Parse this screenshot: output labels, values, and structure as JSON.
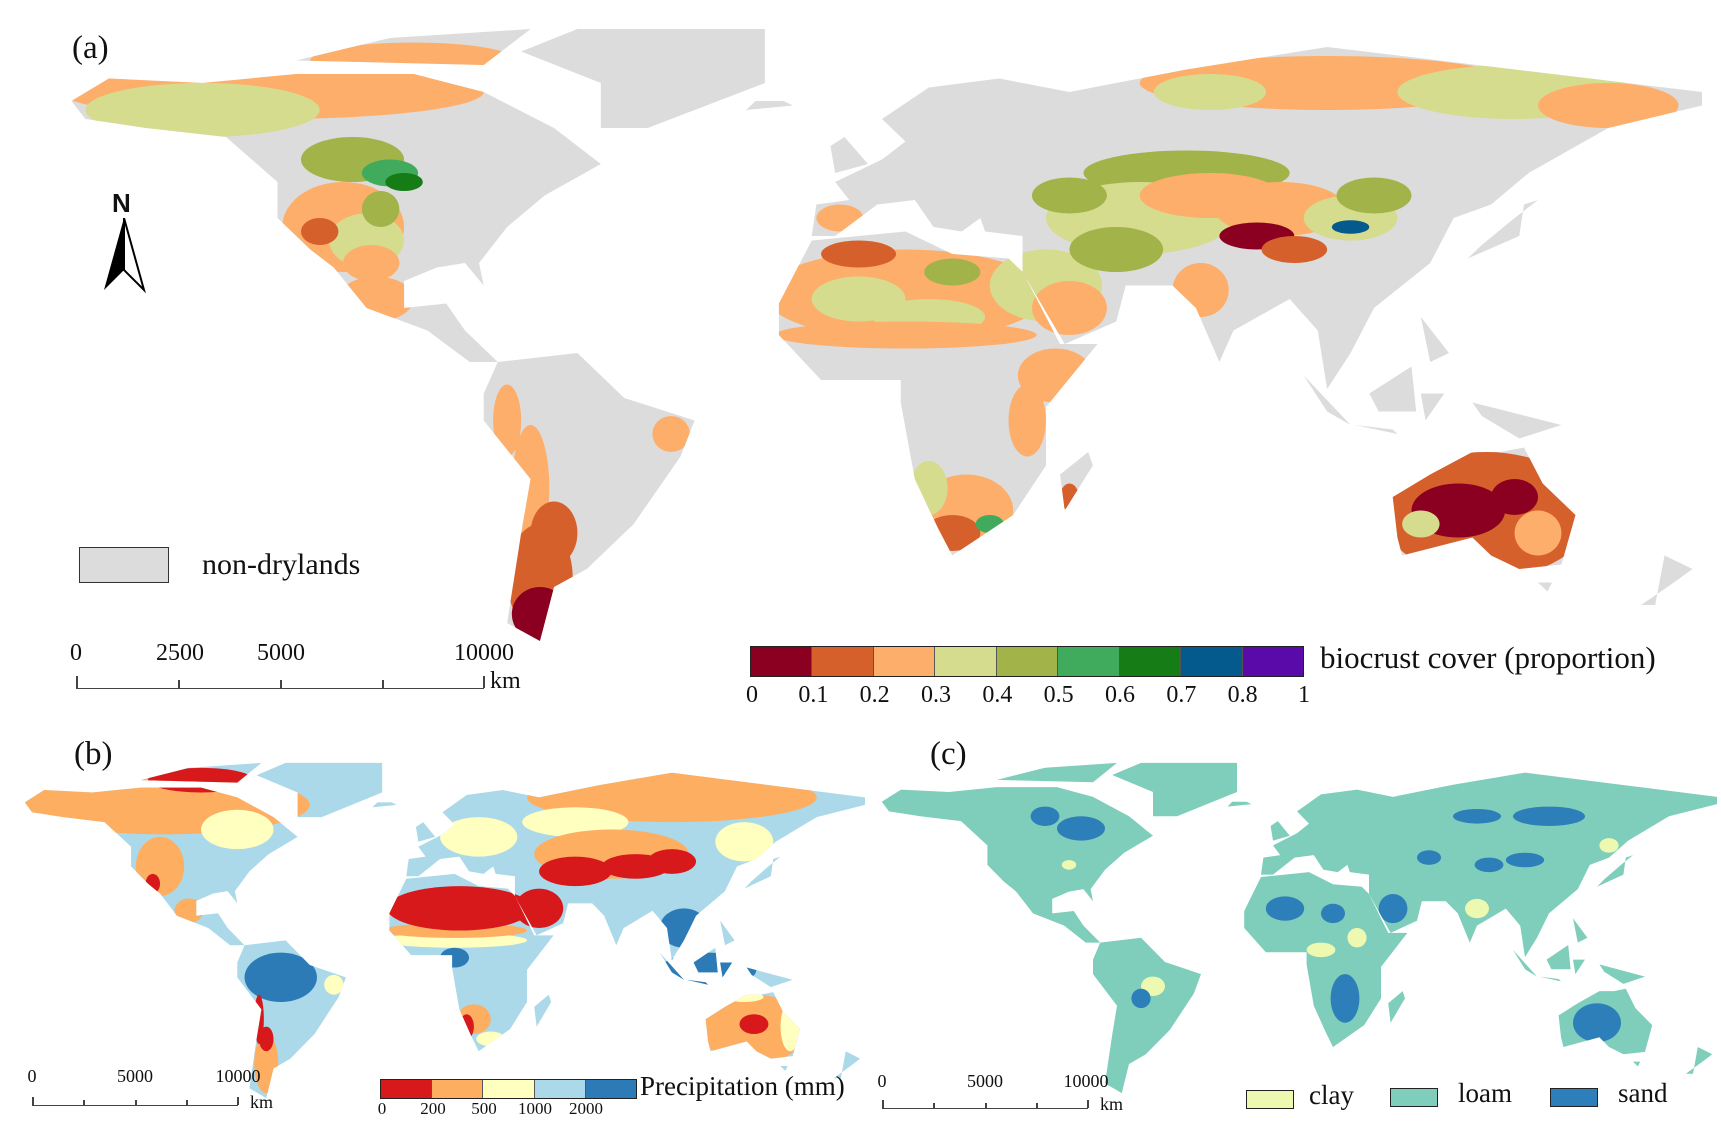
{
  "panel_a": {
    "label": "(a)",
    "north_label": "N",
    "nondryland_legend": "non-drylands",
    "nondryland_color": "#dcdcdc",
    "scale": {
      "ticks": [
        "0",
        "2500",
        "5000",
        "10000"
      ],
      "unit": "km"
    },
    "colorbar": {
      "title": "biocrust cover (proportion)",
      "ticks": [
        "0",
        "0.1",
        "0.2",
        "0.3",
        "0.4",
        "0.5",
        "0.6",
        "0.7",
        "0.8",
        "1"
      ],
      "colors": [
        "#8b0020",
        "#d6602b",
        "#fdae6b",
        "#d5dc8e",
        "#a2b34a",
        "#41ab5d",
        "#167d16",
        "#045a8d",
        "#5a0aa8"
      ]
    }
  },
  "panel_b": {
    "label": "(b)",
    "scale": {
      "ticks": [
        "0",
        "5000",
        "10000"
      ],
      "unit": "km"
    },
    "colorbar": {
      "title": "Precipitation (mm)",
      "ticks": [
        "0",
        "200",
        "500",
        "1000",
        "2000"
      ],
      "colors": [
        "#d7191c",
        "#fdae61",
        "#ffffbf",
        "#abd9e9",
        "#2c7bb6"
      ]
    }
  },
  "panel_c": {
    "label": "(c)",
    "scale": {
      "ticks": [
        "0",
        "5000",
        "10000"
      ],
      "unit": "km"
    },
    "legend": [
      {
        "label": "clay",
        "color": "#edf8b1"
      },
      {
        "label": "loam",
        "color": "#7fcdbb"
      },
      {
        "label": "sand",
        "color": "#2c7fb8"
      }
    ]
  }
}
